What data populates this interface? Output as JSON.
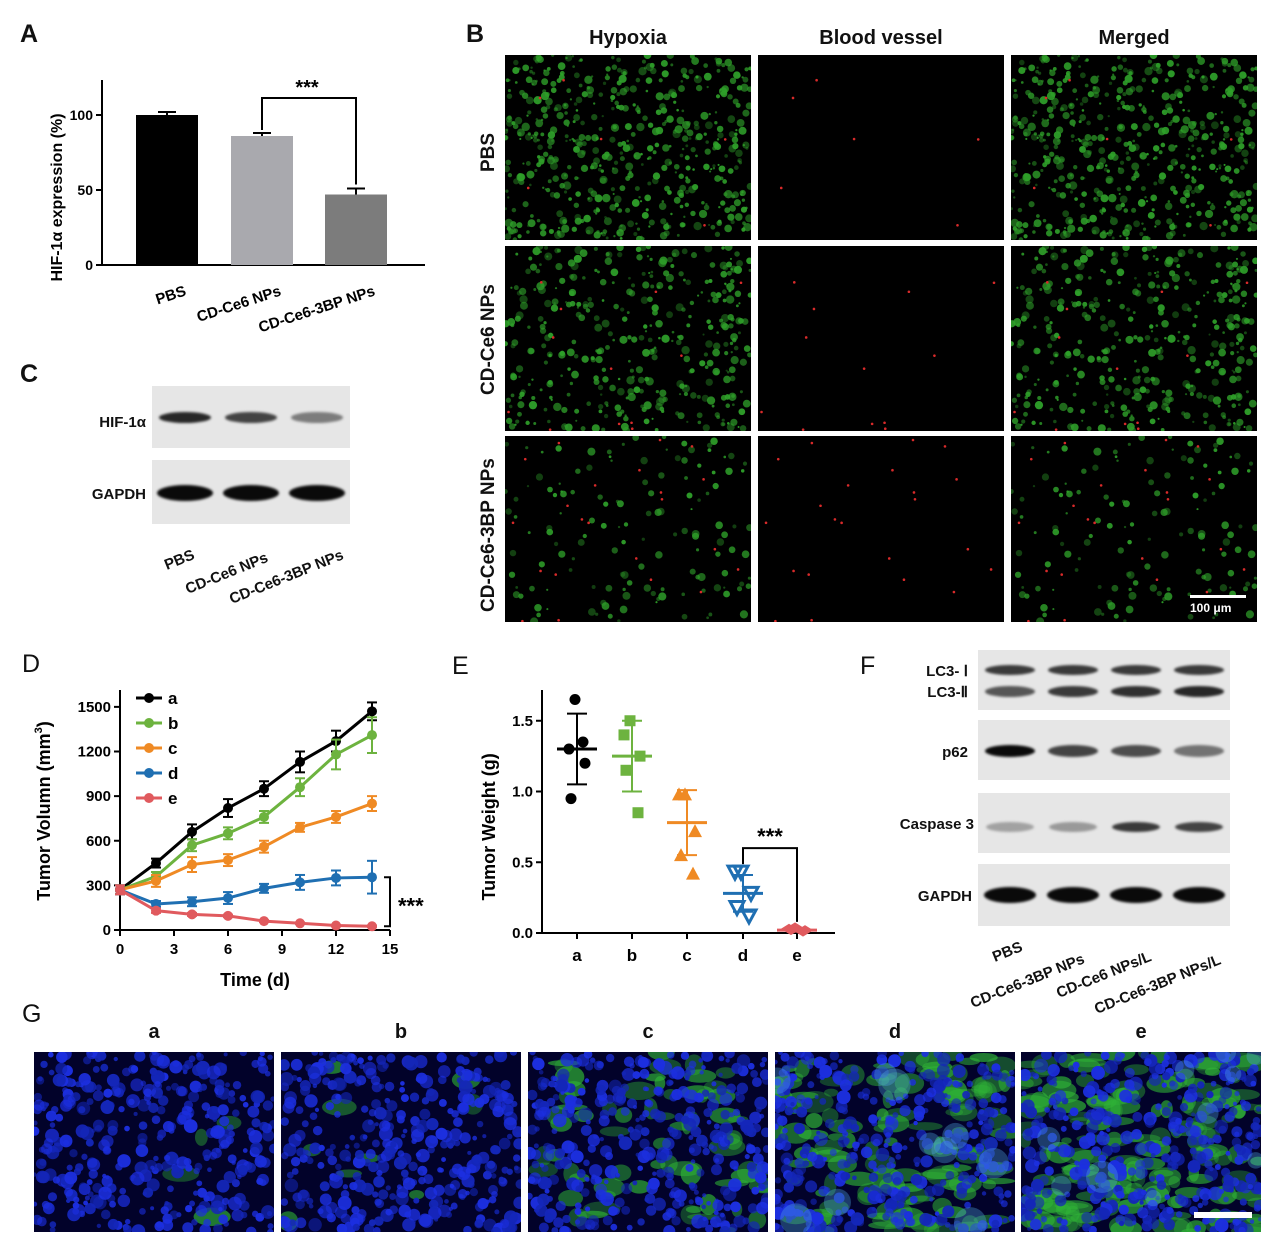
{
  "panels": {
    "A": "A",
    "B": "B",
    "C": "C",
    "D": "D",
    "E": "E",
    "F": "F",
    "G": "G"
  },
  "panel_b": {
    "columns": [
      "Hypoxia",
      "Blood vessel",
      "Merged"
    ],
    "rows": [
      "PBS",
      "CD-Ce6 NPs",
      "CD-Ce6-3BP NPs"
    ],
    "scale_bar": "100 μm",
    "colors": {
      "hypoxia": "#2fa12a",
      "vessel": "#d92a2a"
    }
  },
  "panel_c": {
    "proteins": [
      "HIF-1α",
      "GAPDH"
    ],
    "lanes": [
      "PBS",
      "CD-Ce6 NPs",
      "CD-Ce6-3BP NPs"
    ],
    "hif_intensity": [
      0.85,
      0.7,
      0.4
    ],
    "gapdh_intensity": [
      1.0,
      1.0,
      1.0
    ]
  },
  "panel_f": {
    "proteins": [
      "LC3- Ⅰ",
      "LC3-Ⅱ",
      "p62",
      "Caspase 3",
      "GAPDH"
    ],
    "lanes": [
      "PBS",
      "CD-Ce6-3BP NPs",
      "CD-Ce6 NPs/L",
      "CD-Ce6-3BP NPs/L"
    ],
    "lc3_1": [
      0.75,
      0.75,
      0.75,
      0.75
    ],
    "lc3_2": [
      0.6,
      0.75,
      0.8,
      0.85
    ],
    "p62": [
      1.0,
      0.7,
      0.65,
      0.45
    ],
    "caspase3": [
      0.2,
      0.25,
      0.75,
      0.7
    ],
    "gapdh": [
      1.0,
      1.0,
      1.0,
      1.0
    ]
  },
  "panel_g": {
    "labels": [
      "a",
      "b",
      "c",
      "d",
      "e"
    ],
    "green_level": [
      0.02,
      0.04,
      0.3,
      0.55,
      0.75
    ]
  },
  "chart_data": [
    {
      "panel": "A",
      "type": "bar",
      "categories": [
        "PBS",
        "CD-Ce6 NPs",
        "CD-Ce6-3BP NPs"
      ],
      "values": [
        100,
        86,
        47
      ],
      "errors": [
        2,
        2,
        4
      ],
      "colors": [
        "#000000",
        "#a9a9ae",
        "#7c7c7c"
      ],
      "ylabel": "HIF-1α expression (%)",
      "yticks": [
        0,
        50,
        100
      ],
      "ylim": [
        0,
        110
      ],
      "significance": "***"
    },
    {
      "panel": "D",
      "type": "line",
      "x": [
        0,
        2,
        4,
        6,
        8,
        10,
        12,
        14
      ],
      "xticks": [
        0,
        3,
        6,
        9,
        12,
        15
      ],
      "yticks": [
        0,
        300,
        600,
        900,
        1200,
        1500
      ],
      "xlim": [
        0,
        15
      ],
      "ylim": [
        0,
        1600
      ],
      "xlabel": "Time (d)",
      "ylabel": "Tumor Volumn (mm3)",
      "significance": "***",
      "legend_position": "top-left",
      "series": [
        {
          "name": "a",
          "color": "#000000",
          "values": [
            270,
            450,
            660,
            820,
            950,
            1130,
            1270,
            1470
          ],
          "errors": [
            30,
            30,
            50,
            60,
            50,
            70,
            70,
            60
          ]
        },
        {
          "name": "b",
          "color": "#6db33f",
          "values": [
            270,
            360,
            570,
            650,
            760,
            960,
            1180,
            1310
          ],
          "errors": [
            30,
            30,
            40,
            40,
            40,
            60,
            100,
            120
          ]
        },
        {
          "name": "c",
          "color": "#ef8a24",
          "values": [
            270,
            330,
            440,
            470,
            560,
            690,
            760,
            850
          ],
          "errors": [
            30,
            40,
            50,
            40,
            40,
            30,
            40,
            50
          ]
        },
        {
          "name": "d",
          "color": "#1f6fb2",
          "values": [
            270,
            175,
            190,
            215,
            280,
            320,
            350,
            355
          ],
          "errors": [
            30,
            20,
            30,
            40,
            30,
            50,
            50,
            110
          ]
        },
        {
          "name": "e",
          "color": "#e05a5e",
          "values": [
            270,
            130,
            105,
            95,
            60,
            45,
            30,
            25
          ],
          "errors": [
            30,
            15,
            10,
            8,
            6,
            5,
            4,
            4
          ]
        }
      ]
    },
    {
      "panel": "E",
      "type": "scatter",
      "categories": [
        "a",
        "b",
        "c",
        "d",
        "e"
      ],
      "ylabel": "Tumor Weight (g)",
      "yticks": [
        0.0,
        0.5,
        1.0,
        1.5
      ],
      "ylim": [
        0,
        1.7
      ],
      "significance": "***",
      "series": [
        {
          "name": "a",
          "color": "#000000",
          "marker": "circle",
          "points": [
            1.65,
            1.3,
            1.2,
            0.95,
            1.35
          ],
          "mean": 1.3,
          "sd": 0.25
        },
        {
          "name": "b",
          "color": "#6db33f",
          "marker": "square",
          "points": [
            1.5,
            1.4,
            1.25,
            1.15,
            0.85
          ],
          "mean": 1.25,
          "sd": 0.25
        },
        {
          "name": "c",
          "color": "#ef8a24",
          "marker": "triangle",
          "points": [
            0.98,
            0.98,
            0.72,
            0.55,
            0.42
          ],
          "mean": 0.78,
          "sd": 0.23
        },
        {
          "name": "d",
          "color": "#1f6fb2",
          "marker": "triangle-down",
          "points": [
            0.43,
            0.43,
            0.28,
            0.18,
            0.12
          ],
          "mean": 0.28,
          "sd": 0.13
        },
        {
          "name": "e",
          "color": "#e05a5e",
          "marker": "diamond",
          "points": [
            0.04,
            0.03,
            0.02,
            0.02,
            0.01
          ],
          "mean": 0.02,
          "sd": 0.01
        }
      ]
    }
  ]
}
